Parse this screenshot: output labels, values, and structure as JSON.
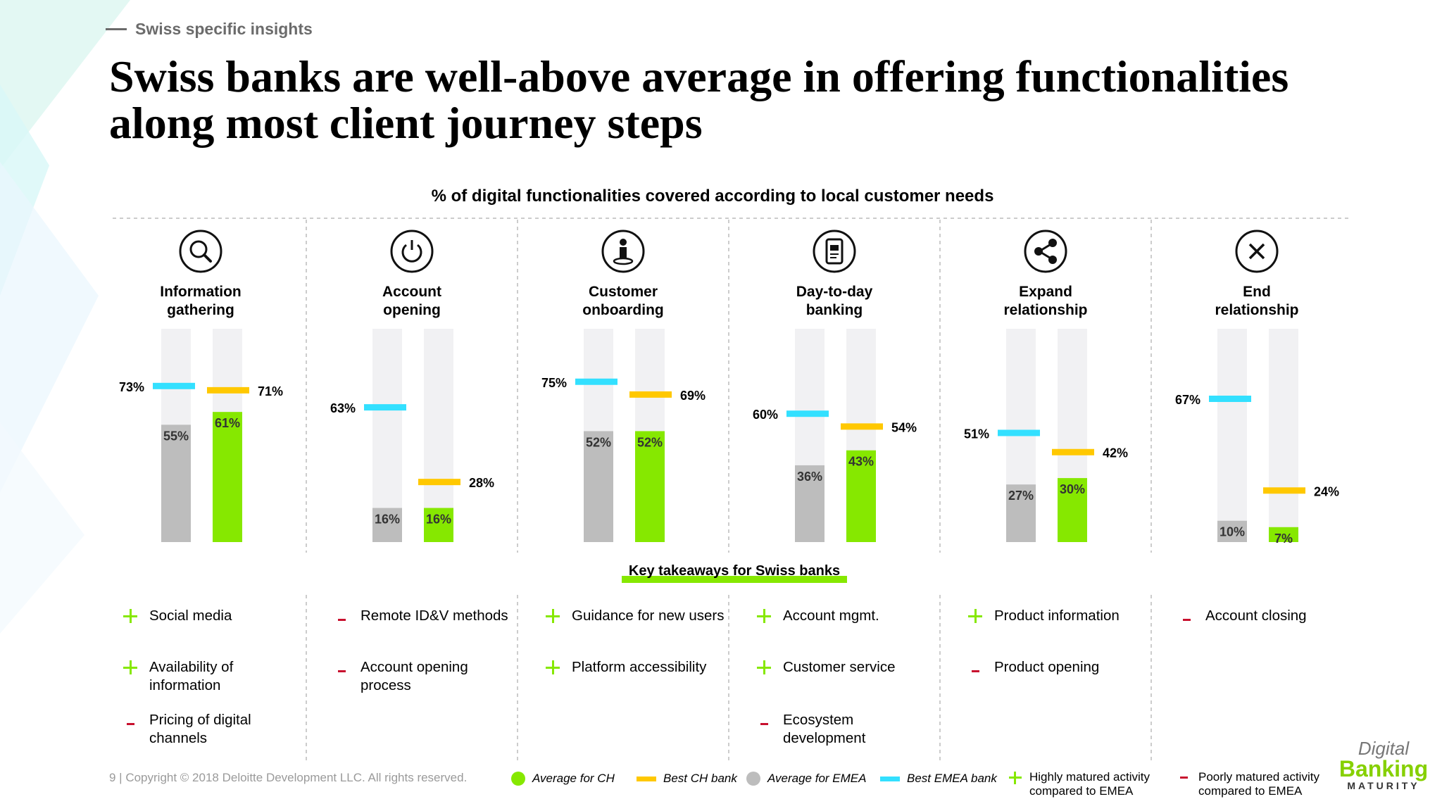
{
  "header": {
    "kicker": "Swiss specific insights",
    "title": "Swiss banks are well-above average in offering functionalities along most client journey steps"
  },
  "colors": {
    "avg_ch": "#86e800",
    "best_ch": "#ffc800",
    "avg_emea": "#bdbdbd",
    "best_emea": "#33e0ff",
    "track": "#f1f1f3",
    "plus": "#86e800",
    "minus": "#c8102e"
  },
  "chart_data": {
    "type": "bar",
    "title": "% of digital functionalities covered according to local customer needs",
    "ylim": [
      0,
      100
    ],
    "categories": [
      "Information gathering",
      "Account opening",
      "Customer onboarding",
      "Day-to-day banking",
      "Expand relationship",
      "End relationship"
    ],
    "category_lines": [
      [
        "Information",
        "gathering"
      ],
      [
        "Account",
        "opening"
      ],
      [
        "Customer",
        "onboarding"
      ],
      [
        "Day-to-day",
        "banking"
      ],
      [
        "Expand",
        "relationship"
      ],
      [
        "End",
        "relationship"
      ]
    ],
    "icons": [
      "search-icon",
      "power-icon",
      "person-icon",
      "mobile-banking-icon",
      "share-icon",
      "close-icon"
    ],
    "series": [
      {
        "name": "Average for EMEA",
        "kind": "bar",
        "values": [
          55,
          16,
          52,
          36,
          27,
          10
        ]
      },
      {
        "name": "Average for CH",
        "kind": "bar",
        "values": [
          61,
          16,
          52,
          43,
          30,
          7
        ]
      },
      {
        "name": "Best EMEA bank",
        "kind": "marker",
        "values": [
          73,
          63,
          75,
          60,
          51,
          67
        ]
      },
      {
        "name": "Best CH bank",
        "kind": "marker",
        "values": [
          71,
          28,
          69,
          54,
          42,
          24
        ]
      }
    ]
  },
  "takeaways": {
    "title": "Key takeaways for Swiss banks",
    "columns": [
      [
        {
          "type": "plus",
          "text": "Social media"
        },
        {
          "type": "plus",
          "text": "Availability of information"
        },
        {
          "type": "minus",
          "text": "Pricing of digital channels"
        }
      ],
      [
        {
          "type": "minus",
          "text": "Remote ID&V methods"
        },
        {
          "type": "minus",
          "text": "Account opening process"
        }
      ],
      [
        {
          "type": "plus",
          "text": "Guidance for new users"
        },
        {
          "type": "plus",
          "text": "Platform accessibility"
        }
      ],
      [
        {
          "type": "plus",
          "text": "Account mgmt."
        },
        {
          "type": "plus",
          "text": "Customer service"
        },
        {
          "type": "minus",
          "text": "Ecosystem development"
        }
      ],
      [
        {
          "type": "plus",
          "text": "Product information"
        },
        {
          "type": "minus",
          "text": "Product opening"
        }
      ],
      [
        {
          "type": "minus",
          "text": "Account closing"
        }
      ]
    ]
  },
  "footer": {
    "copyright": "9  |  Copyright © 2018 Deloitte Development LLC. All rights reserved."
  },
  "legend": {
    "avg_ch": "Average for CH",
    "best_ch": "Best CH bank",
    "avg_emea": "Average for EMEA",
    "best_emea": "Best EMEA bank",
    "plus_line1": "Highly matured activity",
    "plus_line2": "compared to EMEA",
    "minus_line1": "Poorly matured activity",
    "minus_line2": "compared to EMEA"
  },
  "logo": {
    "line1": "Digital",
    "line2": "Banking",
    "line3": "MATURITY"
  }
}
